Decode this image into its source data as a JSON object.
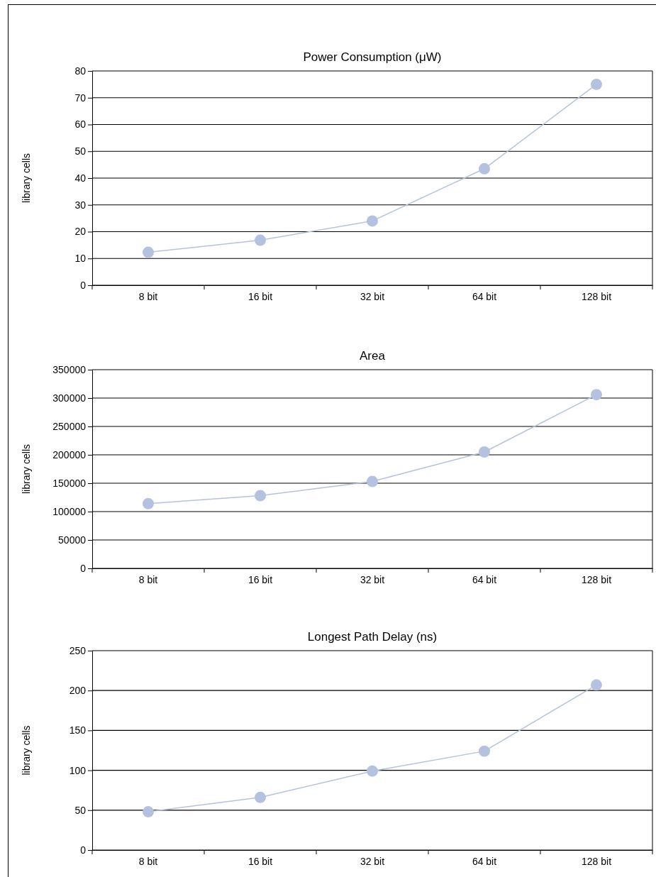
{
  "chart_data": [
    {
      "type": "line",
      "title": "Power Consumption (μW)",
      "ylabel": "library cells",
      "categories": [
        "8 bit",
        "16 bit",
        "32 bit",
        "64 bit",
        "128 bit"
      ],
      "series": [
        {
          "color": "#b4c2e0",
          "values": [
            12.3,
            16.8,
            24,
            43.5,
            75
          ]
        }
      ],
      "ylim": [
        0,
        80
      ],
      "yticks": [
        0,
        10,
        20,
        30,
        40,
        50,
        60,
        70,
        80
      ],
      "grid": "y",
      "marker": "circle",
      "line_style": "solid"
    },
    {
      "type": "line",
      "title": "Area",
      "ylabel": "library cells",
      "categories": [
        "8 bit",
        "16 bit",
        "32 bit",
        "64 bit",
        "128 bit"
      ],
      "series": [
        {
          "color": "#b4c2e0",
          "values": [
            114000,
            128000,
            153000,
            205000,
            306000
          ]
        }
      ],
      "ylim": [
        0,
        350000
      ],
      "yticks": [
        0,
        50000,
        100000,
        150000,
        200000,
        250000,
        300000,
        350000
      ],
      "grid": "y",
      "marker": "circle",
      "line_style": "solid"
    },
    {
      "type": "line",
      "title": "Longest Path Delay (ns)",
      "ylabel": "library cells",
      "categories": [
        "8 bit",
        "16 bit",
        "32 bit",
        "64 bit",
        "128 bit"
      ],
      "series": [
        {
          "color": "#b4c2e0",
          "values": [
            48,
            66,
            99,
            124,
            207
          ]
        }
      ],
      "ylim": [
        0,
        250
      ],
      "yticks": [
        0,
        50,
        100,
        150,
        200,
        250
      ],
      "grid": "y",
      "marker": "circle",
      "line_style": "solid"
    }
  ]
}
